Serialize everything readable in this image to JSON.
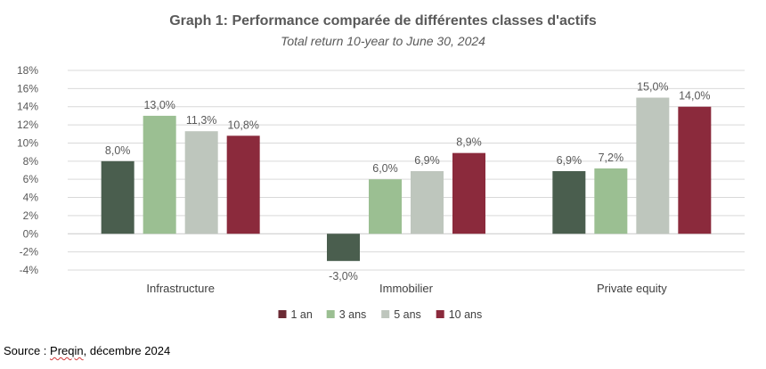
{
  "chart_data": {
    "type": "bar",
    "title": "Graph 1: Performance comparée de différentes classes d'actifs",
    "subtitle": "Total return 10-year to June 30, 2024",
    "categories": [
      "Infrastructure",
      "Immobilier",
      "Private equity"
    ],
    "series": [
      {
        "name": "1 an",
        "color": "#4a5e4e",
        "values": [
          8.0,
          -3.0,
          6.9
        ],
        "labels": [
          "8,0%",
          "-3,0%",
          "6,9%"
        ]
      },
      {
        "name": "3 ans",
        "color": "#9bbf92",
        "values": [
          13.0,
          6.0,
          7.2
        ],
        "labels": [
          "13,0%",
          "6,0%",
          "7,2%"
        ]
      },
      {
        "name": "5 ans",
        "color": "#bec6bd",
        "values": [
          11.3,
          6.9,
          15.0
        ],
        "labels": [
          "11,3%",
          "6,9%",
          "15,0%"
        ]
      },
      {
        "name": "10 ans",
        "color": "#8b2a3c",
        "values": [
          10.8,
          8.9,
          14.0
        ],
        "labels": [
          "10,8%",
          "8,9%",
          "14,0%"
        ]
      }
    ],
    "legend_colors": [
      "#6b2a34",
      "#9bbf92",
      "#bec6bd",
      "#8b2a3c"
    ],
    "ylim": [
      -4,
      18
    ],
    "yticks": [
      18,
      16,
      14,
      12,
      10,
      8,
      6,
      4,
      2,
      0,
      -2,
      -4
    ],
    "ytick_labels": [
      "18%",
      "16%",
      "14%",
      "12%",
      "10%",
      "8%",
      "6%",
      "4%",
      "2%",
      "0%",
      "-2%",
      "-4%"
    ],
    "grid": true,
    "legend_position": "bottom"
  },
  "source": {
    "prefix": "Source : ",
    "name": "Preqin",
    "suffix": ", décembre 2024"
  }
}
